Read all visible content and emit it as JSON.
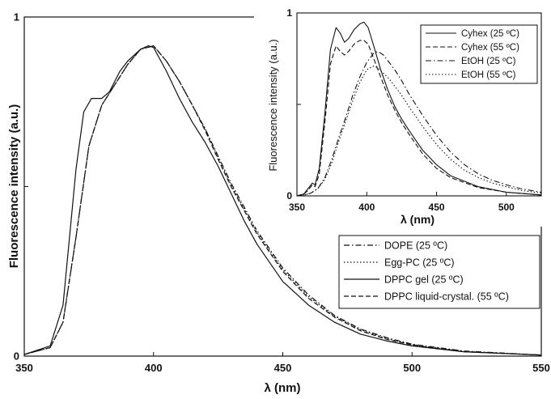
{
  "chart_data": [
    {
      "id": "main",
      "type": "line",
      "xlabel": "λ (nm)",
      "ylabel": "Fluorescence intensity (a.u.)",
      "xlim": [
        350,
        550
      ],
      "ylim": [
        0,
        1
      ],
      "x_ticks": [
        350,
        400,
        450,
        500,
        550
      ],
      "y_tick_labels": [
        "0",
        "1"
      ],
      "legend_position": "right-middle",
      "grid": false,
      "series": [
        {
          "name": "DOPE (25 ºC)",
          "dash": "dashdot",
          "x": [
            350,
            360,
            365,
            370,
            375,
            380,
            385,
            390,
            395,
            400,
            405,
            410,
            415,
            420,
            425,
            430,
            435,
            440,
            450,
            460,
            470,
            480,
            490,
            500,
            520,
            550
          ],
          "y": [
            0.005,
            0.025,
            0.1,
            0.35,
            0.62,
            0.74,
            0.8,
            0.86,
            0.905,
            0.915,
            0.87,
            0.81,
            0.74,
            0.67,
            0.59,
            0.51,
            0.44,
            0.37,
            0.26,
            0.18,
            0.12,
            0.08,
            0.055,
            0.035,
            0.015,
            0.003
          ]
        },
        {
          "name": "Egg-PC (25 ºC)",
          "dash": "dotted",
          "x": [
            350,
            360,
            365,
            370,
            375,
            380,
            385,
            390,
            395,
            400,
            405,
            410,
            415,
            420,
            425,
            430,
            435,
            440,
            450,
            460,
            470,
            480,
            490,
            500,
            520,
            550
          ],
          "y": [
            0.005,
            0.025,
            0.1,
            0.35,
            0.62,
            0.74,
            0.8,
            0.86,
            0.905,
            0.915,
            0.87,
            0.81,
            0.74,
            0.67,
            0.585,
            0.505,
            0.435,
            0.365,
            0.255,
            0.175,
            0.118,
            0.078,
            0.052,
            0.034,
            0.014,
            0.003
          ]
        },
        {
          "name": "DPPC gel (25 ºC)",
          "dash": "solid",
          "x": [
            350,
            360,
            365,
            370,
            373,
            376,
            380,
            383,
            387,
            390,
            395,
            398,
            400,
            405,
            410,
            415,
            420,
            425,
            430,
            435,
            440,
            450,
            460,
            470,
            480,
            490,
            500,
            520,
            550
          ],
          "y": [
            0.005,
            0.03,
            0.15,
            0.55,
            0.72,
            0.76,
            0.76,
            0.78,
            0.84,
            0.87,
            0.905,
            0.915,
            0.91,
            0.84,
            0.76,
            0.69,
            0.63,
            0.56,
            0.48,
            0.4,
            0.33,
            0.22,
            0.15,
            0.1,
            0.065,
            0.045,
            0.03,
            0.013,
            0.003
          ]
        },
        {
          "name": "DPPC liquid-crystal. (55 ºC)",
          "dash": "dashed",
          "x": [
            350,
            360,
            365,
            370,
            375,
            380,
            385,
            390,
            395,
            400,
            405,
            410,
            415,
            420,
            425,
            430,
            435,
            440,
            450,
            460,
            470,
            480,
            490,
            500,
            520,
            550
          ],
          "y": [
            0.005,
            0.025,
            0.1,
            0.35,
            0.62,
            0.74,
            0.8,
            0.86,
            0.905,
            0.915,
            0.87,
            0.81,
            0.74,
            0.665,
            0.58,
            0.5,
            0.43,
            0.36,
            0.25,
            0.17,
            0.115,
            0.075,
            0.05,
            0.033,
            0.013,
            0.003
          ]
        }
      ]
    },
    {
      "id": "inset",
      "type": "line",
      "xlabel": "λ (nm)",
      "ylabel": "Fluorescence intensity (a.u.)",
      "xlim": [
        350,
        525
      ],
      "ylim": [
        0,
        1
      ],
      "x_ticks": [
        350,
        400,
        450,
        500
      ],
      "y_tick_labels": [
        "0",
        "1"
      ],
      "legend_position": "top-right",
      "grid": false,
      "series": [
        {
          "name": "Cyhex (25 ºC)",
          "dash": "solid",
          "x": [
            350,
            355,
            358,
            361,
            363,
            366,
            370,
            374,
            378,
            381,
            384,
            387,
            391,
            395,
            398,
            401,
            405,
            410,
            415,
            420,
            425,
            430,
            440,
            450,
            460,
            480,
            500,
            525
          ],
          "y": [
            0.0,
            0.01,
            0.04,
            0.07,
            0.06,
            0.15,
            0.45,
            0.8,
            0.92,
            0.89,
            0.84,
            0.86,
            0.91,
            0.94,
            0.95,
            0.92,
            0.82,
            0.69,
            0.58,
            0.49,
            0.42,
            0.36,
            0.25,
            0.17,
            0.11,
            0.05,
            0.02,
            0.005
          ]
        },
        {
          "name": "Cyhex (55 ºC)",
          "dash": "dashed",
          "x": [
            350,
            355,
            358,
            361,
            363,
            366,
            370,
            374,
            378,
            381,
            384,
            387,
            391,
            395,
            398,
            401,
            405,
            410,
            415,
            420,
            425,
            430,
            440,
            450,
            460,
            480,
            500,
            525
          ],
          "y": [
            0.0,
            0.01,
            0.03,
            0.06,
            0.05,
            0.12,
            0.4,
            0.72,
            0.82,
            0.79,
            0.77,
            0.79,
            0.83,
            0.85,
            0.85,
            0.83,
            0.75,
            0.65,
            0.55,
            0.47,
            0.4,
            0.34,
            0.23,
            0.15,
            0.1,
            0.045,
            0.02,
            0.005
          ]
        },
        {
          "name": "EtOH (25 ºC)",
          "dash": "dashdot",
          "x": [
            350,
            355,
            360,
            365,
            370,
            375,
            380,
            385,
            390,
            395,
            400,
            405,
            408,
            412,
            416,
            420,
            425,
            430,
            440,
            450,
            460,
            470,
            480,
            490,
            500,
            510,
            525
          ],
          "y": [
            0.0,
            0.005,
            0.015,
            0.04,
            0.1,
            0.2,
            0.32,
            0.43,
            0.55,
            0.65,
            0.73,
            0.78,
            0.79,
            0.77,
            0.73,
            0.69,
            0.63,
            0.56,
            0.44,
            0.33,
            0.24,
            0.17,
            0.12,
            0.085,
            0.06,
            0.04,
            0.02
          ]
        },
        {
          "name": "EtOH (55 ºC)",
          "dash": "dotted",
          "x": [
            350,
            355,
            360,
            365,
            370,
            375,
            380,
            385,
            390,
            395,
            400,
            405,
            408,
            412,
            416,
            420,
            425,
            430,
            440,
            450,
            460,
            470,
            480,
            490,
            500,
            510,
            525
          ],
          "y": [
            0.0,
            0.005,
            0.015,
            0.04,
            0.09,
            0.18,
            0.3,
            0.41,
            0.52,
            0.62,
            0.69,
            0.71,
            0.7,
            0.67,
            0.64,
            0.6,
            0.55,
            0.49,
            0.38,
            0.28,
            0.2,
            0.14,
            0.1,
            0.07,
            0.05,
            0.03,
            0.015
          ]
        }
      ]
    }
  ]
}
